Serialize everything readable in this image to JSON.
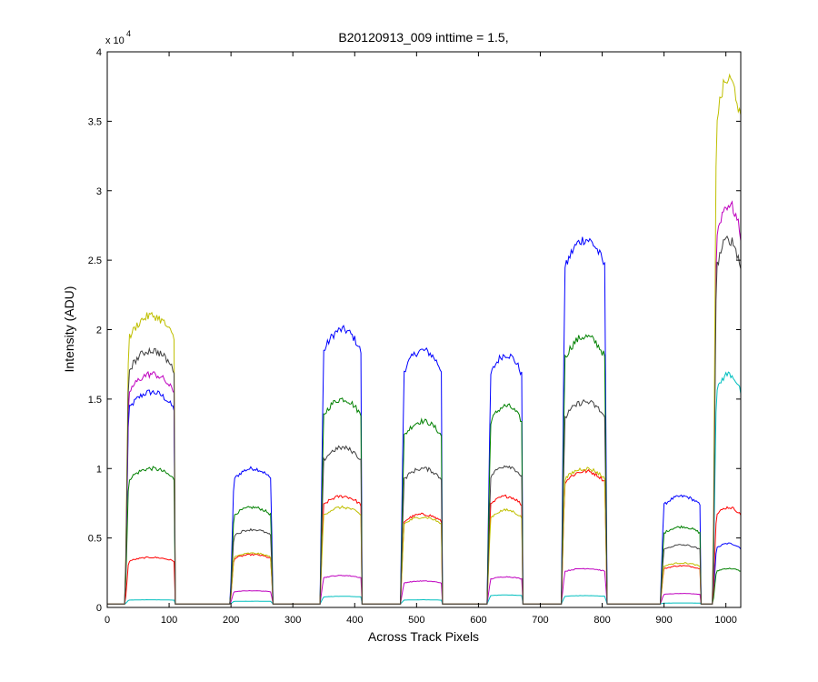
{
  "chart_data": {
    "type": "line",
    "title": "B20120913_009 inttime = 1.5,",
    "xlabel": "Across Track Pixels",
    "ylabel": "Intensity (ADU)",
    "y_exponent_label": "x 10",
    "y_exponent": "4",
    "xlim": [
      0,
      1024
    ],
    "ylim": [
      0,
      40000
    ],
    "x_ticks": [
      0,
      100,
      200,
      300,
      400,
      500,
      600,
      700,
      800,
      900,
      1000
    ],
    "y_ticks": [
      0,
      5000,
      10000,
      15000,
      20000,
      25000,
      30000,
      35000,
      40000
    ],
    "y_tick_labels": [
      "0",
      "0.5",
      "1",
      "1.5",
      "2",
      "2.5",
      "3",
      "3.5",
      "4"
    ],
    "x_tick_labels": [
      "0",
      "100",
      "200",
      "300",
      "400",
      "500",
      "600",
      "700",
      "800",
      "900",
      "1000"
    ],
    "grid": false,
    "baseline": 250,
    "segments": [
      {
        "start": 35,
        "end": 108
      },
      {
        "start": 205,
        "end": 265
      },
      {
        "start": 350,
        "end": 410
      },
      {
        "start": 480,
        "end": 540
      },
      {
        "start": 620,
        "end": 670
      },
      {
        "start": 740,
        "end": 805
      },
      {
        "start": 900,
        "end": 958
      },
      {
        "start": 985,
        "end": 1024
      }
    ],
    "series": [
      {
        "color": "#0000ff",
        "levels": [
          15500,
          10000,
          20000,
          18500,
          18200,
          26500,
          8000,
          4600
        ]
      },
      {
        "color": "#008000",
        "levels": [
          10000,
          7200,
          15000,
          13400,
          14500,
          19500,
          5800,
          2800
        ]
      },
      {
        "color": "#ff0000",
        "levels": [
          3600,
          3800,
          8000,
          6700,
          8000,
          9800,
          3000,
          7200
        ]
      },
      {
        "color": "#00bfbf",
        "levels": [
          550,
          450,
          800,
          550,
          900,
          850,
          320,
          16800
        ]
      },
      {
        "color": "#bf00bf",
        "levels": [
          16800,
          1200,
          2300,
          1900,
          2200,
          2800,
          1000,
          29000
        ]
      },
      {
        "color": "#bfbf00",
        "levels": [
          21000,
          3900,
          7200,
          6500,
          7000,
          10000,
          3200,
          38000
        ]
      },
      {
        "color": "#404040",
        "levels": [
          18500,
          5600,
          11500,
          10000,
          10200,
          14800,
          4500,
          26500
        ]
      }
    ]
  }
}
